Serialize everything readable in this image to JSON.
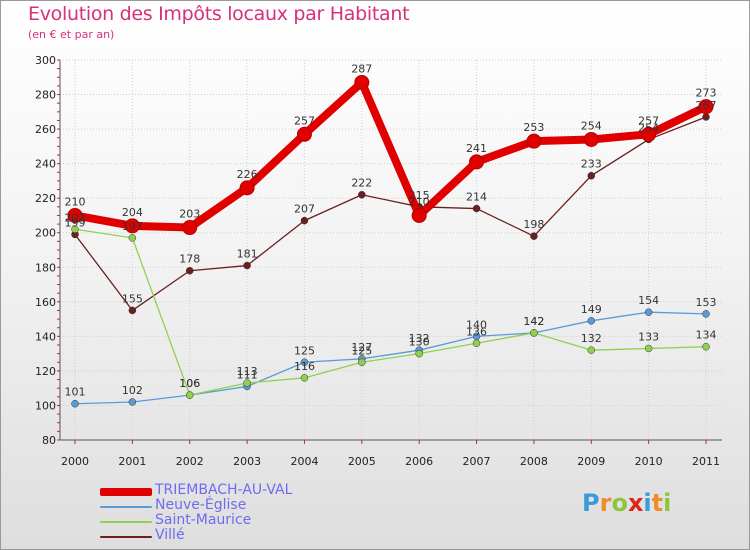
{
  "chart_data": {
    "type": "line",
    "title": "Evolution des Impôts locaux par Habitant",
    "subtitle": "(en € et par an)",
    "xlabel": "",
    "ylabel": "",
    "categories": [
      "2000",
      "2001",
      "2002",
      "2003",
      "2004",
      "2005",
      "2006",
      "2007",
      "2008",
      "2009",
      "2010",
      "2011"
    ],
    "ylim": [
      80,
      300
    ],
    "yticks": [
      "80",
      "100",
      "120",
      "140",
      "160",
      "180",
      "200",
      "220",
      "240",
      "260",
      "280",
      "300"
    ],
    "series": [
      {
        "name": "TRIEMBACH-AU-VAL",
        "color": "#e00000",
        "values": [
          210,
          204,
          203,
          226,
          257,
          287,
          210,
          241,
          253,
          254,
          257,
          273
        ]
      },
      {
        "name": "Neuve-Église",
        "color": "#5b9bd5",
        "values": [
          101,
          102,
          106,
          111,
          125,
          127,
          132,
          140,
          142,
          149,
          154,
          153
        ]
      },
      {
        "name": "Saint-Maurice",
        "color": "#8fd14f",
        "values": [
          202,
          197,
          106,
          113,
          116,
          125,
          130,
          136,
          142,
          132,
          133,
          134
        ]
      },
      {
        "name": "Villé",
        "color": "#6b1f1f",
        "values": [
          199,
          155,
          178,
          181,
          207,
          222,
          215,
          214,
          198,
          233,
          254,
          267
        ]
      }
    ],
    "legend_position": "bottom-left"
  },
  "logo": {
    "letters": [
      "P",
      "r",
      "o",
      "x",
      "i",
      "t",
      "i"
    ],
    "colors": [
      "#3a9bd8",
      "#f28c28",
      "#8cc63f",
      "#e2231a",
      "#3a9bd8",
      "#f28c28",
      "#8cc63f"
    ]
  }
}
